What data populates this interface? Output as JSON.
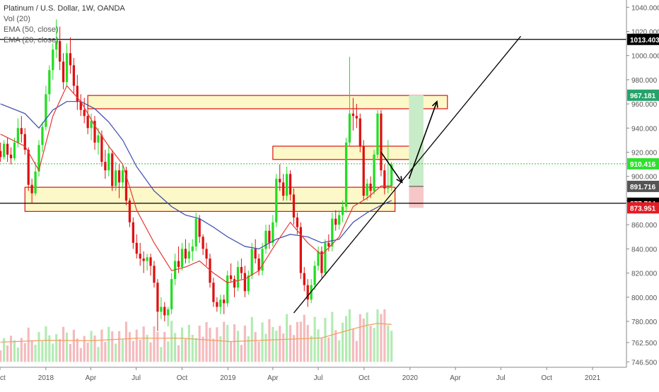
{
  "header": {
    "title": "Platinum / U.S. Dollar, 1W, OANDA",
    "indicators": [
      "Vol (20)",
      "EMA (50, close)",
      "EMA (20, close)"
    ]
  },
  "chart_data": {
    "type": "candlestick",
    "symbol": "Platinum / U.S. Dollar",
    "interval": "1W",
    "source": "OANDA",
    "y_axis": {
      "range": [
        742,
        1046
      ],
      "ticks": [
        746.5,
        762.5,
        780,
        800,
        820,
        840,
        860,
        880,
        900,
        920,
        940,
        960,
        980,
        1000,
        1020,
        1040
      ],
      "tick_labels": [
        "746.500",
        "762.500",
        "780.000",
        "800.000",
        "820.000",
        "840.000",
        "860.000",
        "880.000",
        "900.000",
        "920.000",
        "940.000",
        "960.000",
        "980.000",
        "1000.000",
        "1020.000",
        "1040.000"
      ]
    },
    "x_axis": {
      "range": [
        "2017-10-01",
        "2021-03-10"
      ],
      "tick_labels": [
        {
          "label": "Oct",
          "date": "2017-10-01"
        },
        {
          "label": "2018",
          "date": "2018-01-01"
        },
        {
          "label": "Apr",
          "date": "2018-04-01"
        },
        {
          "label": "Jul",
          "date": "2018-07-01"
        },
        {
          "label": "Oct",
          "date": "2018-10-01"
        },
        {
          "label": "2019",
          "date": "2019-01-01"
        },
        {
          "label": "Apr",
          "date": "2019-04-01"
        },
        {
          "label": "Jul",
          "date": "2019-07-01"
        },
        {
          "label": "Oct",
          "date": "2019-10-01"
        },
        {
          "label": "2020",
          "date": "2020-01-01"
        },
        {
          "label": "Apr",
          "date": "2020-04-01"
        },
        {
          "label": "Jul",
          "date": "2020-07-01"
        },
        {
          "label": "Oct",
          "date": "2020-10-01"
        },
        {
          "label": "2021",
          "date": "2021-01-01"
        }
      ]
    },
    "price_labels": [
      {
        "value": 1013.403,
        "text": "1013.403",
        "bg": "#000000",
        "fg": "#ffffff"
      },
      {
        "value": 967.181,
        "text": "967.181",
        "bg": "#26a36a",
        "fg": "#ffffff"
      },
      {
        "value": 910.416,
        "text": "910.416",
        "bg": "#2fe02f",
        "fg": "#ffffff"
      },
      {
        "value": 891.716,
        "text": "891.716",
        "bg": "#555555",
        "fg": "#ffffff"
      },
      {
        "value": 877.764,
        "text": "877.764",
        "bg": "#000000",
        "fg": "#ffffff"
      },
      {
        "value": 873.951,
        "text": "873.951",
        "bg": "#e31b23",
        "fg": "#ffffff"
      }
    ],
    "colors": {
      "up": "#22dd22",
      "down": "#dd1111",
      "ema20": "#e53935",
      "ema50": "#3949ab",
      "volume_sma": "#f0a060",
      "zone_fill": "#fdf8c8",
      "zone_border": "#dd1111",
      "current_price_line": "#22cc22"
    },
    "candles": [
      [
        "2017-10-02",
        921,
        928,
        912,
        916
      ],
      [
        "2017-10-09",
        916,
        930,
        914,
        927
      ],
      [
        "2017-10-16",
        927,
        932,
        912,
        918
      ],
      [
        "2017-10-23",
        918,
        924,
        910,
        915
      ],
      [
        "2017-10-30",
        915,
        932,
        913,
        928
      ],
      [
        "2017-11-06",
        928,
        948,
        924,
        940
      ],
      [
        "2017-11-13",
        940,
        950,
        928,
        935
      ],
      [
        "2017-11-20",
        935,
        940,
        918,
        922
      ],
      [
        "2017-11-27",
        922,
        924,
        888,
        893
      ],
      [
        "2017-12-04",
        893,
        898,
        878,
        886
      ],
      [
        "2017-12-11",
        886,
        912,
        884,
        904
      ],
      [
        "2017-12-18",
        904,
        930,
        900,
        926
      ],
      [
        "2017-12-25",
        926,
        945,
        920,
        941
      ],
      [
        "2018-01-01",
        941,
        975,
        938,
        968
      ],
      [
        "2018-01-08",
        968,
        992,
        962,
        988
      ],
      [
        "2018-01-15",
        988,
        1010,
        980,
        1005
      ],
      [
        "2018-01-22",
        1005,
        1030,
        998,
        1012
      ],
      [
        "2018-01-29",
        1012,
        1024,
        988,
        995
      ],
      [
        "2018-02-05",
        995,
        1002,
        972,
        978
      ],
      [
        "2018-02-12",
        978,
        1010,
        975,
        1002
      ],
      [
        "2018-02-19",
        1002,
        1015,
        985,
        992
      ],
      [
        "2018-02-26",
        992,
        998,
        968,
        975
      ],
      [
        "2018-03-05",
        975,
        984,
        955,
        962
      ],
      [
        "2018-03-12",
        962,
        968,
        950,
        955
      ],
      [
        "2018-03-19",
        955,
        965,
        944,
        950
      ],
      [
        "2018-03-26",
        950,
        958,
        935,
        940
      ],
      [
        "2018-04-02",
        940,
        952,
        930,
        946
      ],
      [
        "2018-04-09",
        946,
        950,
        922,
        928
      ],
      [
        "2018-04-16",
        928,
        940,
        918,
        934
      ],
      [
        "2018-04-23",
        934,
        938,
        908,
        912
      ],
      [
        "2018-04-30",
        912,
        922,
        898,
        905
      ],
      [
        "2018-05-07",
        905,
        926,
        900,
        919
      ],
      [
        "2018-05-14",
        919,
        922,
        888,
        892
      ],
      [
        "2018-05-21",
        892,
        912,
        888,
        905
      ],
      [
        "2018-05-28",
        905,
        910,
        882,
        895
      ],
      [
        "2018-06-04",
        895,
        910,
        890,
        905
      ],
      [
        "2018-06-11",
        905,
        908,
        876,
        880
      ],
      [
        "2018-06-18",
        880,
        882,
        858,
        862
      ],
      [
        "2018-06-25",
        862,
        866,
        840,
        845
      ],
      [
        "2018-07-02",
        845,
        852,
        832,
        836
      ],
      [
        "2018-07-09",
        836,
        845,
        826,
        832
      ],
      [
        "2018-07-16",
        832,
        838,
        820,
        830
      ],
      [
        "2018-07-23",
        830,
        836,
        822,
        833
      ],
      [
        "2018-07-30",
        833,
        836,
        818,
        826
      ],
      [
        "2018-08-06",
        826,
        830,
        808,
        812
      ],
      [
        "2018-08-13",
        812,
        815,
        772,
        788
      ],
      [
        "2018-08-20",
        788,
        800,
        782,
        792
      ],
      [
        "2018-08-27",
        792,
        796,
        780,
        785
      ],
      [
        "2018-09-03",
        785,
        792,
        776,
        790
      ],
      [
        "2018-09-10",
        790,
        820,
        786,
        815
      ],
      [
        "2018-09-17",
        815,
        836,
        810,
        830
      ],
      [
        "2018-09-24",
        830,
        842,
        820,
        825
      ],
      [
        "2018-10-01",
        825,
        845,
        822,
        840
      ],
      [
        "2018-10-08",
        840,
        848,
        828,
        832
      ],
      [
        "2018-10-15",
        832,
        845,
        828,
        838
      ],
      [
        "2018-10-22",
        838,
        848,
        830,
        842
      ],
      [
        "2018-10-29",
        842,
        870,
        838,
        865
      ],
      [
        "2018-11-05",
        865,
        868,
        845,
        850
      ],
      [
        "2018-11-12",
        850,
        852,
        835,
        840
      ],
      [
        "2018-11-19",
        840,
        845,
        826,
        832
      ],
      [
        "2018-11-26",
        832,
        836,
        808,
        812
      ],
      [
        "2018-12-03",
        812,
        816,
        792,
        796
      ],
      [
        "2018-12-10",
        796,
        800,
        788,
        792
      ],
      [
        "2018-12-17",
        792,
        802,
        786,
        798
      ],
      [
        "2018-12-24",
        798,
        802,
        786,
        795
      ],
      [
        "2018-12-31",
        795,
        822,
        792,
        818
      ],
      [
        "2019-01-07",
        818,
        828,
        812,
        815
      ],
      [
        "2019-01-14",
        815,
        818,
        800,
        808
      ],
      [
        "2019-01-21",
        808,
        830,
        805,
        825
      ],
      [
        "2019-01-28",
        825,
        832,
        815,
        820
      ],
      [
        "2019-02-04",
        820,
        826,
        800,
        805
      ],
      [
        "2019-02-11",
        805,
        822,
        802,
        818
      ],
      [
        "2019-02-18",
        818,
        845,
        815,
        840
      ],
      [
        "2019-02-25",
        840,
        848,
        828,
        832
      ],
      [
        "2019-03-04",
        832,
        836,
        818,
        822
      ],
      [
        "2019-03-11",
        822,
        845,
        818,
        840
      ],
      [
        "2019-03-18",
        840,
        860,
        836,
        855
      ],
      [
        "2019-03-25",
        855,
        860,
        840,
        845
      ],
      [
        "2019-04-01",
        845,
        868,
        842,
        862
      ],
      [
        "2019-04-08",
        862,
        902,
        858,
        898
      ],
      [
        "2019-04-15",
        898,
        910,
        888,
        895
      ],
      [
        "2019-04-22",
        895,
        902,
        880,
        884
      ],
      [
        "2019-04-29",
        884,
        908,
        880,
        902
      ],
      [
        "2019-05-06",
        902,
        905,
        880,
        885
      ],
      [
        "2019-05-13",
        885,
        890,
        860,
        866
      ],
      [
        "2019-05-20",
        866,
        870,
        852,
        858
      ],
      [
        "2019-05-27",
        858,
        862,
        815,
        820
      ],
      [
        "2019-06-03",
        820,
        825,
        805,
        810
      ],
      [
        "2019-06-10",
        810,
        815,
        792,
        798
      ],
      [
        "2019-06-17",
        798,
        815,
        795,
        810
      ],
      [
        "2019-06-24",
        810,
        830,
        806,
        826
      ],
      [
        "2019-07-01",
        826,
        842,
        822,
        838
      ],
      [
        "2019-07-08",
        838,
        842,
        816,
        820
      ],
      [
        "2019-07-15",
        820,
        848,
        818,
        845
      ],
      [
        "2019-07-22",
        845,
        852,
        838,
        842
      ],
      [
        "2019-07-29",
        842,
        870,
        838,
        865
      ],
      [
        "2019-08-05",
        865,
        872,
        855,
        860
      ],
      [
        "2019-08-12",
        860,
        872,
        856,
        868
      ],
      [
        "2019-08-19",
        868,
        880,
        862,
        875
      ],
      [
        "2019-08-26",
        875,
        932,
        870,
        928
      ],
      [
        "2019-09-02",
        928,
        999,
        925,
        952
      ],
      [
        "2019-09-09",
        952,
        965,
        938,
        950
      ],
      [
        "2019-09-16",
        950,
        960,
        940,
        948
      ],
      [
        "2019-09-23",
        948,
        952,
        920,
        925
      ],
      [
        "2019-09-30",
        925,
        930,
        880,
        884
      ],
      [
        "2019-10-07",
        884,
        898,
        880,
        894
      ],
      [
        "2019-10-14",
        894,
        900,
        882,
        888
      ],
      [
        "2019-10-21",
        888,
        922,
        885,
        918
      ],
      [
        "2019-10-28",
        918,
        955,
        915,
        952
      ],
      [
        "2019-11-04",
        952,
        955,
        900,
        905
      ],
      [
        "2019-11-11",
        905,
        910,
        885,
        890
      ],
      [
        "2019-11-18",
        890,
        930,
        886,
        892
      ],
      [
        "2019-11-25",
        892,
        912,
        888,
        910
      ]
    ],
    "ema20": [
      [
        "2017-10-02",
        935
      ],
      [
        "2017-11-20",
        925
      ],
      [
        "2017-12-18",
        905
      ],
      [
        "2018-01-15",
        950
      ],
      [
        "2018-02-12",
        975
      ],
      [
        "2018-03-12",
        962
      ],
      [
        "2018-04-09",
        942
      ],
      [
        "2018-05-07",
        925
      ],
      [
        "2018-06-04",
        910
      ],
      [
        "2018-07-02",
        872
      ],
      [
        "2018-08-06",
        845
      ],
      [
        "2018-09-10",
        822
      ],
      [
        "2018-10-08",
        825
      ],
      [
        "2018-11-05",
        830
      ],
      [
        "2018-12-03",
        820
      ],
      [
        "2018-12-31",
        812
      ],
      [
        "2019-02-04",
        815
      ],
      [
        "2019-03-04",
        822
      ],
      [
        "2019-04-08",
        845
      ],
      [
        "2019-05-06",
        862
      ],
      [
        "2019-06-10",
        845
      ],
      [
        "2019-07-08",
        835
      ],
      [
        "2019-08-12",
        850
      ],
      [
        "2019-09-09",
        875
      ],
      [
        "2019-10-07",
        882
      ],
      [
        "2019-11-04",
        892
      ],
      [
        "2019-11-25",
        892
      ]
    ],
    "ema50": [
      [
        "2017-10-02",
        960
      ],
      [
        "2017-11-20",
        952
      ],
      [
        "2017-12-18",
        940
      ],
      [
        "2018-01-15",
        955
      ],
      [
        "2018-02-12",
        962
      ],
      [
        "2018-03-12",
        962
      ],
      [
        "2018-04-09",
        956
      ],
      [
        "2018-05-07",
        945
      ],
      [
        "2018-06-04",
        930
      ],
      [
        "2018-07-02",
        908
      ],
      [
        "2018-08-06",
        888
      ],
      [
        "2018-09-10",
        875
      ],
      [
        "2018-10-08",
        868
      ],
      [
        "2018-11-05",
        865
      ],
      [
        "2018-12-03",
        858
      ],
      [
        "2018-12-31",
        850
      ],
      [
        "2019-02-04",
        842
      ],
      [
        "2019-03-04",
        840
      ],
      [
        "2019-04-08",
        848
      ],
      [
        "2019-05-06",
        852
      ],
      [
        "2019-06-10",
        850
      ],
      [
        "2019-07-08",
        845
      ],
      [
        "2019-08-12",
        848
      ],
      [
        "2019-09-09",
        862
      ],
      [
        "2019-10-07",
        870
      ],
      [
        "2019-11-04",
        876
      ],
      [
        "2019-11-25",
        880
      ]
    ],
    "volume_sma": [
      [
        "2017-10-02",
        762.8
      ],
      [
        "2018-01-01",
        764.3
      ],
      [
        "2018-04-02",
        764.0
      ],
      [
        "2018-07-02",
        766.0
      ],
      [
        "2018-10-01",
        766.0
      ],
      [
        "2019-01-07",
        763.3
      ],
      [
        "2019-04-08",
        764.8
      ],
      [
        "2019-07-08",
        766.3
      ],
      [
        "2019-09-09",
        773.8
      ],
      [
        "2019-10-07",
        776.8
      ],
      [
        "2019-10-28",
        778.3
      ],
      [
        "2019-11-25",
        777.5
      ]
    ],
    "horizontal_lines": [
      {
        "value": 1013.403,
        "style": "solid",
        "color": "#000000"
      },
      {
        "value": 877.764,
        "style": "solid",
        "color": "#000000"
      },
      {
        "value": 910.416,
        "style": "dotted",
        "color": "#22cc22"
      }
    ],
    "zones": [
      {
        "from_date": "2018-03-26",
        "to_date": "2020-03-16",
        "low": 956,
        "high": 967
      },
      {
        "from_date": "2019-04-01",
        "to_date": "2020-01-27",
        "low": 914,
        "high": 925
      },
      {
        "from_date": "2017-11-20",
        "to_date": "2019-12-02",
        "low": 871,
        "high": 891
      }
    ],
    "position": {
      "from_date": "2019-12-30",
      "to_date": "2020-01-28",
      "entry": 891.716,
      "target": 967.181,
      "stop": 873.951,
      "profit_color": "#c8ebc8",
      "loss_color": "#f7c6c6"
    },
    "trendline": {
      "start": [
        "2019-05-13",
        787
      ],
      "end": [
        "2020-08-10",
        1016
      ]
    },
    "arrows": [
      {
        "from": [
          "2019-11-04",
          920
        ],
        "to": [
          "2019-12-16",
          895
        ]
      },
      {
        "from": [
          "2019-12-30",
          898
        ],
        "to": [
          "2020-02-24",
          962
        ]
      }
    ]
  }
}
